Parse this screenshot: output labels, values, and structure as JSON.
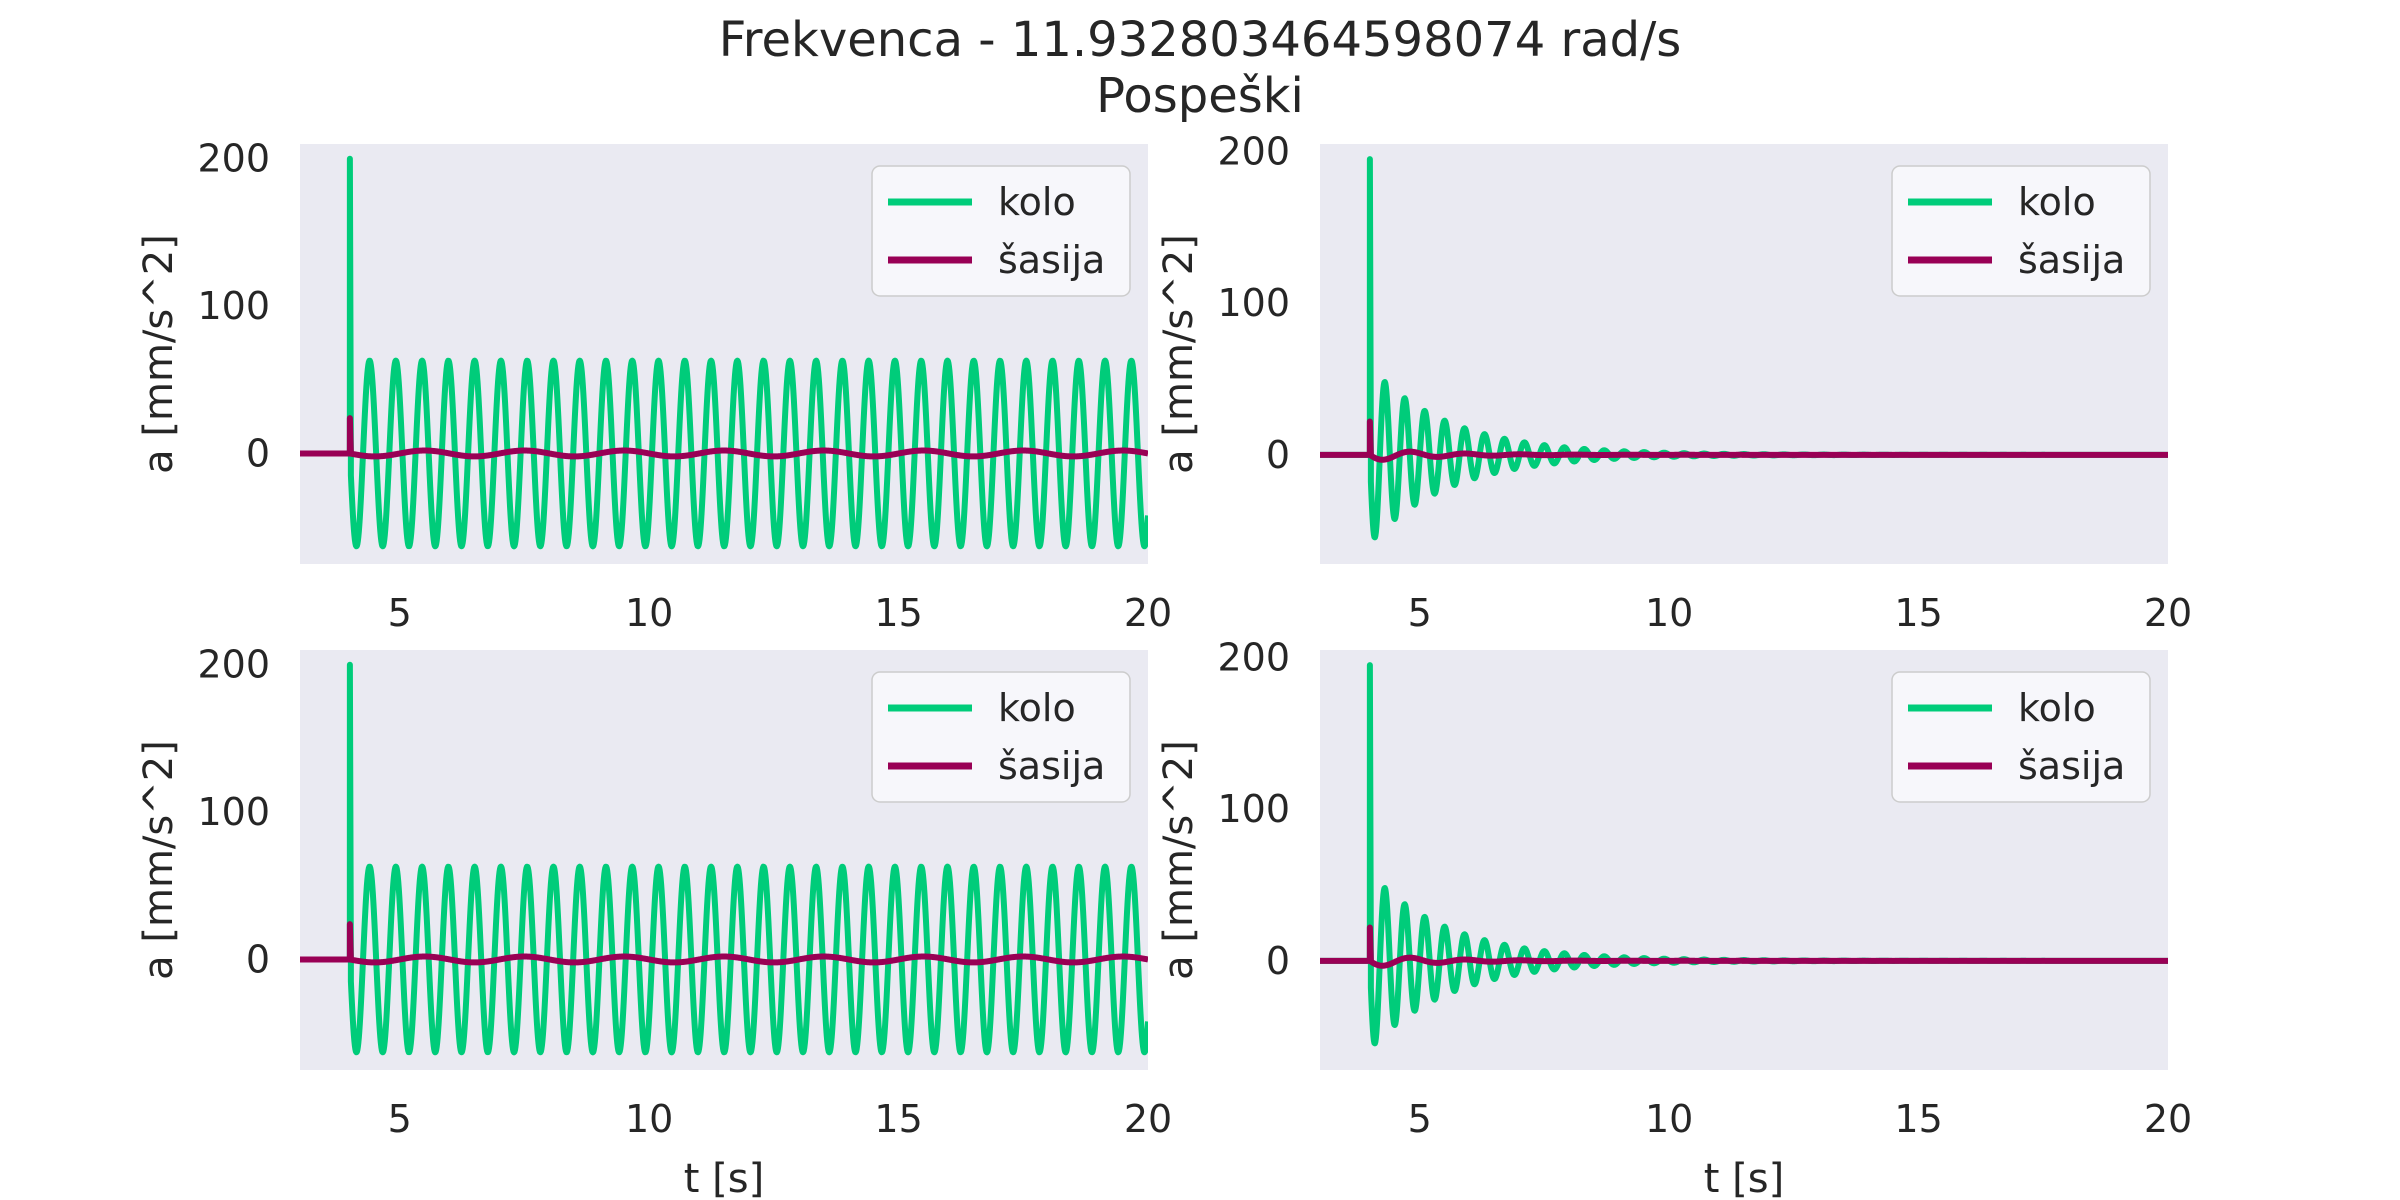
{
  "figure": {
    "title_line1": "Frekvenca - 11.932803464598074 rad/s",
    "title_line2": "Pospeški"
  },
  "style": {
    "plot_background": "#eaeaf2",
    "kolo_color": "#00cc7a",
    "sasija_color": "#990055",
    "legend_background": "#f7f7fb",
    "legend_border": "#cccccc"
  },
  "chart_data": [
    {
      "type": "line",
      "position": "top-left",
      "xlabel": "",
      "ylabel": "a [mm/s^2]",
      "xlim": [
        3,
        20
      ],
      "ylim": [
        -75,
        210
      ],
      "xticks": [
        5,
        10,
        15,
        20
      ],
      "yticks": [
        0,
        100,
        200
      ],
      "grid": false,
      "legend": "top-right",
      "series": [
        {
          "name": "kolo",
          "model": {
            "kind": "sustained",
            "t0": 4.0,
            "peak": 200,
            "amplitude": 63,
            "period": 0.5266,
            "t_end": 20
          }
        },
        {
          "name": "šasija",
          "model": {
            "kind": "sustained",
            "t0": 4.0,
            "peak": 24,
            "amplitude": 2,
            "period": 2.0,
            "t_end": 20
          }
        }
      ]
    },
    {
      "type": "line",
      "position": "top-right",
      "xlabel": "",
      "ylabel": "a [mm/s^2]",
      "xlim": [
        3,
        20
      ],
      "ylim": [
        -72,
        205
      ],
      "xticks": [
        5,
        10,
        15,
        20
      ],
      "yticks": [
        0,
        100,
        200
      ],
      "grid": false,
      "legend": "top-right",
      "series": [
        {
          "name": "kolo",
          "model": {
            "kind": "decaying",
            "t0": 4.0,
            "peak": 195,
            "amplitude": 58,
            "period": 0.4,
            "decay": 0.63,
            "t_end": 20
          }
        },
        {
          "name": "šasija",
          "model": {
            "kind": "decaying",
            "t0": 4.0,
            "peak": 22,
            "amplitude": 4,
            "period": 1.1,
            "decay": 0.8,
            "t_end": 20
          }
        }
      ]
    },
    {
      "type": "line",
      "position": "bottom-left",
      "xlabel": "t [s]",
      "ylabel": "a [mm/s^2]",
      "xlim": [
        3,
        20
      ],
      "ylim": [
        -75,
        210
      ],
      "xticks": [
        5,
        10,
        15,
        20
      ],
      "yticks": [
        0,
        100,
        200
      ],
      "grid": false,
      "legend": "top-right",
      "series": [
        {
          "name": "kolo",
          "model": {
            "kind": "sustained",
            "t0": 4.0,
            "peak": 200,
            "amplitude": 63,
            "period": 0.5266,
            "t_end": 20
          }
        },
        {
          "name": "šasija",
          "model": {
            "kind": "sustained",
            "t0": 4.0,
            "peak": 24,
            "amplitude": 2,
            "period": 2.0,
            "t_end": 20
          }
        }
      ]
    },
    {
      "type": "line",
      "position": "bottom-right",
      "xlabel": "t [s]",
      "ylabel": "a [mm/s^2]",
      "xlim": [
        3,
        20
      ],
      "ylim": [
        -72,
        205
      ],
      "xticks": [
        5,
        10,
        15,
        20
      ],
      "yticks": [
        0,
        100,
        200
      ],
      "grid": false,
      "legend": "top-right",
      "series": [
        {
          "name": "kolo",
          "model": {
            "kind": "decaying",
            "t0": 4.0,
            "peak": 195,
            "amplitude": 58,
            "period": 0.4,
            "decay": 0.63,
            "t_end": 20
          }
        },
        {
          "name": "šasija",
          "model": {
            "kind": "decaying",
            "t0": 4.0,
            "peak": 22,
            "amplitude": 4,
            "period": 1.1,
            "decay": 0.8,
            "t_end": 20
          }
        }
      ]
    }
  ]
}
